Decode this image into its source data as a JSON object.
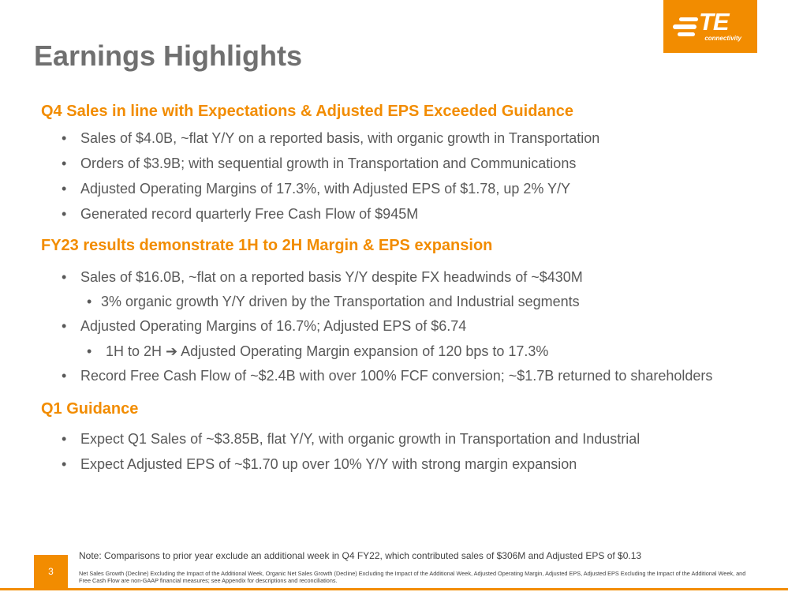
{
  "title": "Earnings Highlights",
  "logo": {
    "text": "TE",
    "subtext": "connectivity"
  },
  "sections": [
    {
      "heading": "Q4 Sales in line with Expectations & Adjusted EPS Exceeded Guidance",
      "bullets": [
        "Sales of $4.0B, ~flat Y/Y on a reported basis, with organic growth in Transportation",
        "Orders of $3.9B; with sequential growth in Transportation and Communications",
        "Adjusted Operating Margins of 17.3%, with Adjusted EPS of $1.78, up 2% Y/Y",
        "Generated record quarterly Free Cash Flow of $945M"
      ]
    },
    {
      "heading": "FY23 results demonstrate 1H to 2H Margin & EPS expansion",
      "bullets": [
        "Sales of $16.0B, ~flat on a reported basis Y/Y despite FX headwinds of ~$430M",
        "3% organic growth Y/Y driven by the Transportation and Industrial segments",
        "Adjusted Operating Margins of 16.7%; Adjusted EPS of $6.74",
        "1H to 2H ➔ Adjusted Operating Margin expansion of 120 bps to 17.3%",
        "Record Free Cash Flow of ~$2.4B with over 100% FCF conversion; ~$1.7B returned to shareholders"
      ]
    },
    {
      "heading": "Q1 Guidance",
      "bullets": [
        "Expect Q1 Sales of ~$3.85B, flat Y/Y, with organic growth in Transportation and Industrial",
        "Expect Adjusted EPS of ~$1.70 up over 10% Y/Y with strong margin expansion"
      ]
    }
  ],
  "bullet_symbol": "•",
  "footer": {
    "page_number": "3",
    "note": "Note: Comparisons to prior year exclude an additional week in Q4 FY22, which contributed sales of $306M and Adjusted EPS of $0.13",
    "fine_print": "Net Sales Growth (Decline) Excluding the Impact of the Additional Week, Organic Net Sales Growth (Decline) Excluding the Impact of the Additional Week, Adjusted Operating Margin, Adjusted EPS, Adjusted EPS Excluding the Impact of the Additional Week, and Free Cash Flow are non-GAAP financial measures; see Appendix for descriptions and reconciliations."
  },
  "colors": {
    "accent": "#f28c00",
    "title": "#707070",
    "body": "#595959"
  }
}
